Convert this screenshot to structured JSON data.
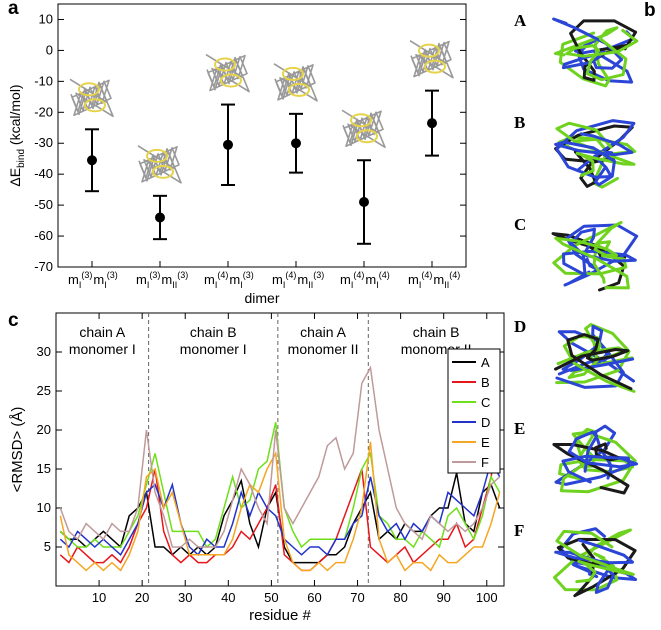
{
  "chart_data": [
    {
      "type": "errorbar",
      "panel": "a",
      "xlabel": "dimer",
      "ylabel": [
        "ΔE",
        "bind",
        " (kcal/mol)"
      ],
      "categories": [
        [
          "m",
          "I",
          "(3)",
          "m",
          "I",
          "(3)"
        ],
        [
          "m",
          "I",
          "(3)",
          "m",
          "II",
          "(3)"
        ],
        [
          "m",
          "I",
          "(4)",
          "m",
          "I",
          "(3)"
        ],
        [
          "m",
          "I",
          "(4)",
          "m",
          "II",
          "(3)"
        ],
        [
          "m",
          "I",
          "(4)",
          "m",
          "I",
          "(4)"
        ],
        [
          "m",
          "I",
          "(4)",
          "m",
          "II",
          "(4)"
        ]
      ],
      "values": [
        -35.5,
        -54,
        -30.5,
        -30,
        -49,
        -23.5
      ],
      "errors": [
        10,
        7,
        13,
        9.5,
        13.5,
        10.5
      ],
      "color": "#000000",
      "ylim": [
        -70,
        15
      ],
      "yticks": [
        -70,
        -60,
        -50,
        -40,
        -30,
        -20,
        -10,
        0,
        10
      ]
    },
    {
      "type": "line",
      "panel": "c",
      "xlabel": "residue #",
      "ylabel": "<RMSD> (Å)",
      "x": [
        1,
        3,
        5,
        7,
        9,
        11,
        13,
        15,
        17,
        19,
        21,
        23,
        25,
        27,
        29,
        31,
        33,
        35,
        37,
        39,
        41,
        43,
        45,
        47,
        49,
        51,
        53,
        55,
        57,
        59,
        61,
        63,
        65,
        67,
        69,
        71,
        73,
        75,
        77,
        79,
        81,
        83,
        85,
        87,
        89,
        91,
        93,
        95,
        97,
        99,
        101,
        103
      ],
      "series": [
        {
          "name": "A",
          "color": "#000000",
          "values": [
            7,
            6,
            6,
            5,
            6,
            7,
            6,
            5,
            9,
            10,
            12,
            5,
            5,
            4,
            5,
            4,
            5,
            4,
            5,
            9,
            11,
            13.5,
            8,
            5,
            10,
            12,
            5,
            3,
            3,
            3,
            3,
            4,
            4,
            5,
            8,
            10,
            12,
            6,
            7,
            6,
            8,
            7,
            7,
            9,
            10,
            10,
            14.5,
            8,
            7,
            12,
            13,
            10
          ]
        },
        {
          "name": "B",
          "color": "#e8161b",
          "values": [
            4,
            3,
            5,
            4,
            3,
            3,
            4,
            3,
            5,
            8,
            10,
            15,
            7,
            4,
            3,
            4,
            3,
            3,
            4,
            4,
            5,
            7,
            6,
            8,
            10,
            13,
            4,
            3,
            2,
            2,
            3,
            4,
            6,
            9,
            12,
            15,
            5,
            4,
            3,
            4,
            5,
            3,
            4,
            5,
            6,
            6,
            8,
            5,
            6,
            10,
            14,
            21
          ]
        },
        {
          "name": "C",
          "color": "#6ee01a",
          "values": [
            7,
            6,
            5,
            5,
            6,
            5,
            5,
            5,
            7,
            9,
            13,
            17,
            12,
            7,
            7,
            7,
            7,
            5,
            6,
            10,
            14,
            10,
            11,
            15,
            16,
            21,
            10,
            7,
            5,
            6,
            6,
            6,
            6,
            6,
            10,
            15,
            17,
            9,
            8,
            6,
            6,
            5,
            7,
            6,
            5,
            9,
            10,
            8,
            6,
            9,
            14,
            12
          ]
        },
        {
          "name": "D",
          "color": "#2233cc",
          "values": [
            6,
            5,
            7,
            6,
            5,
            6,
            5,
            4,
            6,
            8,
            12,
            13,
            10,
            13,
            8,
            5,
            4,
            6,
            5,
            5,
            8,
            12,
            9,
            12,
            10,
            9,
            6,
            5,
            4,
            5,
            5,
            4,
            6,
            6,
            8,
            9,
            14,
            9,
            7,
            8,
            6,
            8,
            7,
            9,
            8,
            12,
            11,
            10,
            9,
            12,
            16,
            14
          ]
        },
        {
          "name": "E",
          "color": "#f5a623",
          "values": [
            9,
            4,
            3,
            2,
            3,
            2,
            3,
            2,
            4,
            7,
            14,
            15,
            10,
            12,
            8,
            4,
            4,
            4,
            4,
            4,
            6,
            10,
            13,
            12,
            15,
            17,
            6,
            3,
            2,
            2,
            3,
            2,
            3,
            3,
            6,
            10,
            18.5,
            6,
            3,
            4,
            2,
            3,
            3,
            2,
            4,
            3,
            3,
            4,
            5,
            5,
            8,
            12
          ]
        },
        {
          "name": "F",
          "color": "#c09a9a",
          "values": [
            10,
            7,
            6,
            8,
            7,
            6,
            8,
            7,
            7,
            10,
            20,
            12,
            9,
            5,
            5,
            6,
            5,
            5,
            5,
            7,
            11,
            15,
            13,
            10,
            8,
            20,
            10,
            8,
            10,
            12,
            14,
            18,
            19,
            15,
            17,
            26,
            28,
            20,
            15,
            10,
            8,
            7,
            6,
            9,
            8,
            7,
            8,
            7,
            8,
            10,
            13,
            14
          ]
        }
      ],
      "xlim": [
        0,
        104
      ],
      "xticks": [
        10,
        20,
        30,
        40,
        50,
        60,
        70,
        80,
        90,
        100
      ],
      "ylim": [
        0,
        35
      ],
      "yticks": [
        5,
        10,
        15,
        20,
        25,
        30
      ],
      "vlines": [
        21.5,
        51.5,
        72.5
      ],
      "annotations": [
        [
          "chain A",
          "monomer I"
        ],
        [
          "chain B",
          "monomer I"
        ],
        [
          "chain A",
          "monomer II"
        ],
        [
          "chain B",
          "monomer II"
        ]
      ],
      "legend": "upper right"
    }
  ],
  "panel_b": {
    "label": "b",
    "items": [
      "A",
      "B",
      "C",
      "D",
      "E",
      "F"
    ]
  }
}
